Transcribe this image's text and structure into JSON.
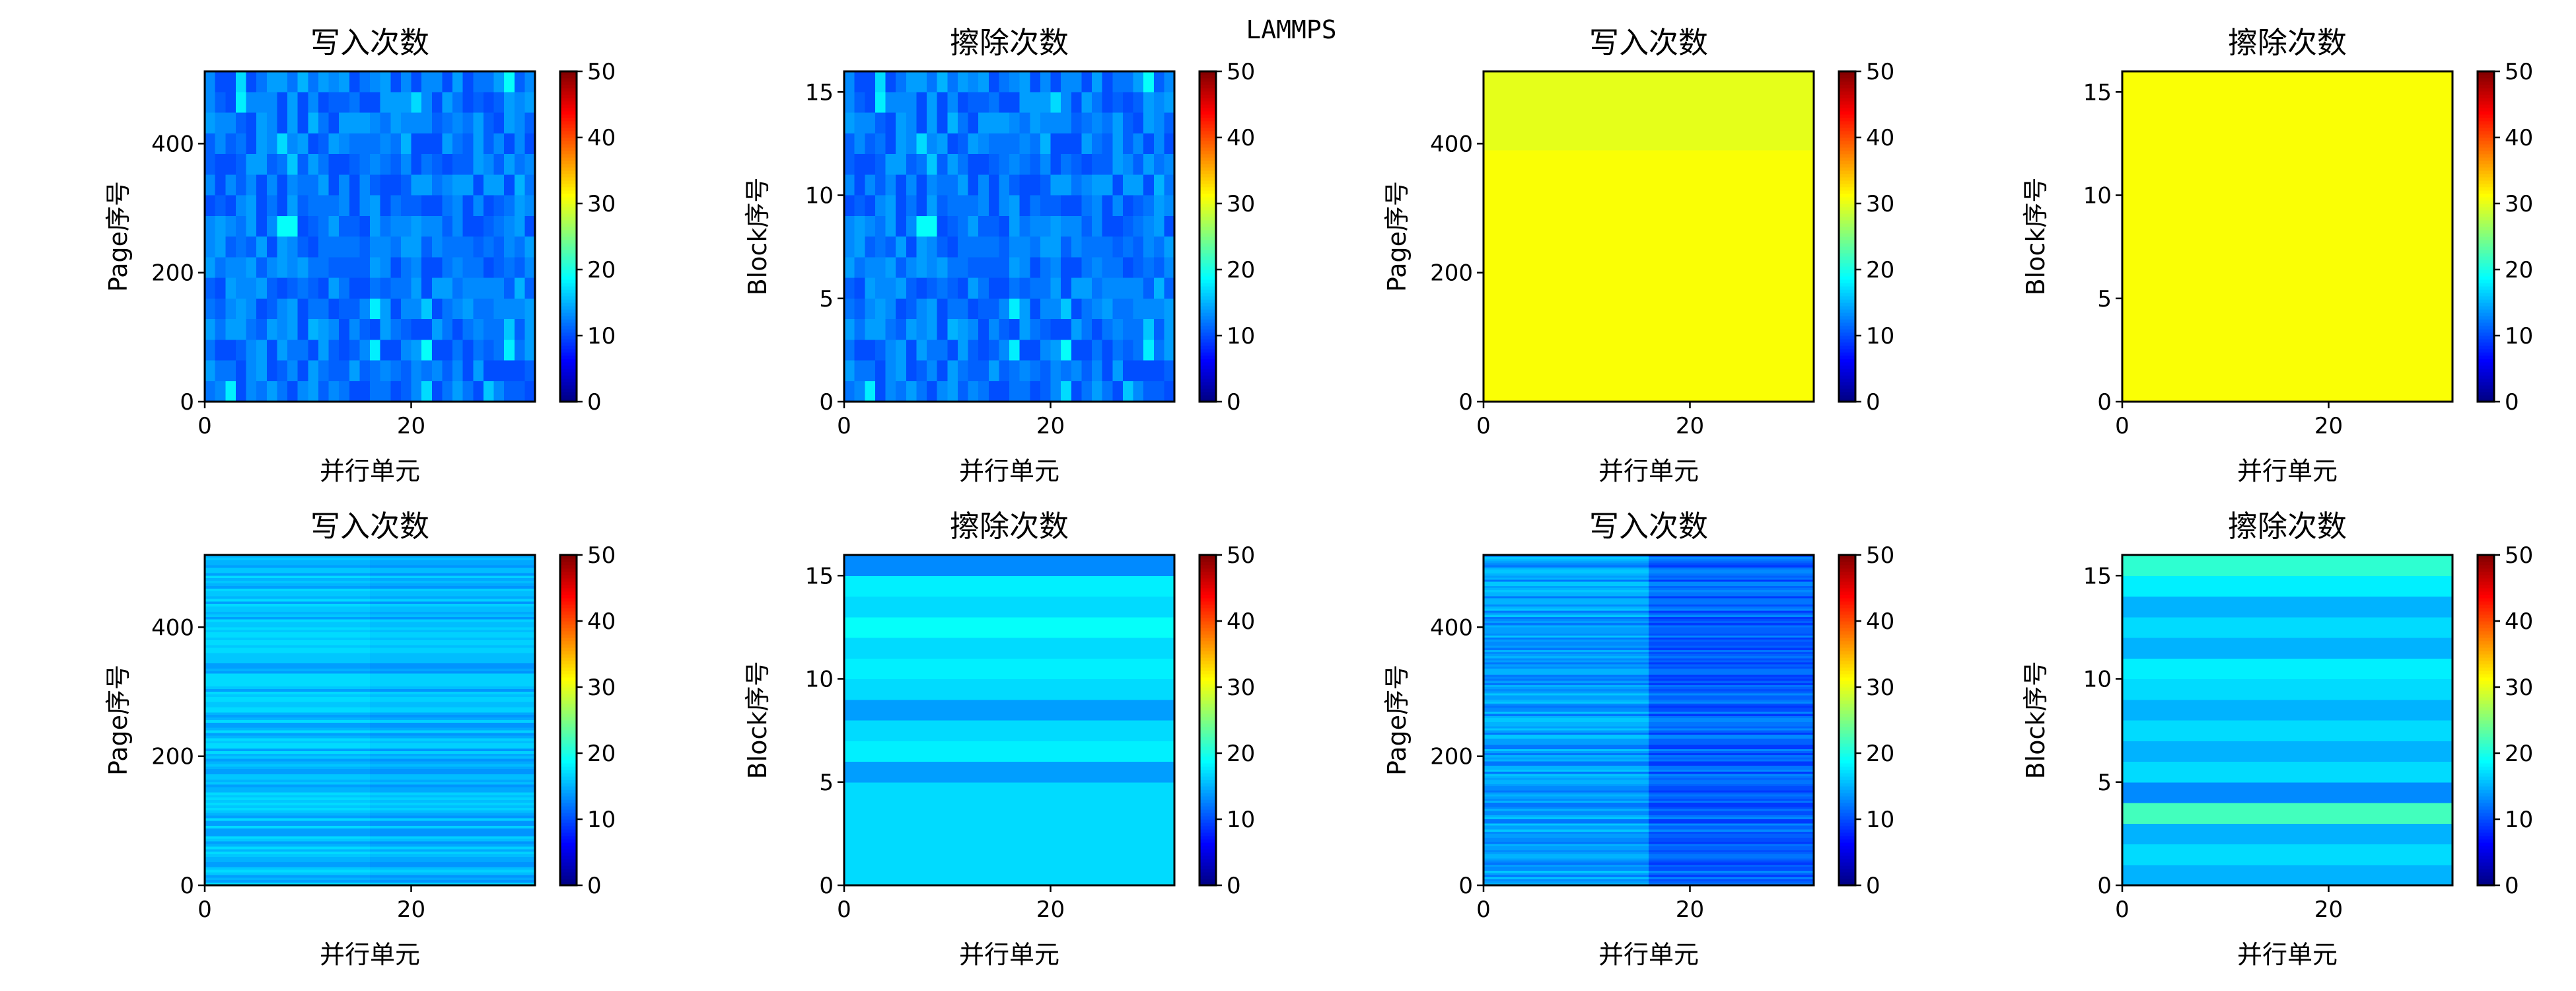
{
  "figure_title": "LAMMPS",
  "colormap": "jet",
  "chart_data": [
    {
      "type": "heatmap",
      "title": "写入次数",
      "xlabel": "并行单元",
      "ylabel": "Page序号",
      "xlim": [
        0,
        32
      ],
      "ylim": [
        0,
        512
      ],
      "xticks": [
        0,
        20
      ],
      "yticks": [
        0,
        200,
        400
      ],
      "color_range": [
        0,
        50
      ],
      "colorbar_ticks": [
        0,
        10,
        20,
        30,
        40,
        50
      ],
      "pattern": "random",
      "levels": [
        10,
        11,
        12,
        13,
        14
      ],
      "blocks": [
        32,
        16
      ]
    },
    {
      "type": "heatmap",
      "title": "擦除次数",
      "xlabel": "并行单元",
      "ylabel": "Block序号",
      "xlim": [
        0,
        32
      ],
      "ylim": [
        0,
        16
      ],
      "xticks": [
        0,
        20
      ],
      "yticks": [
        0,
        5,
        10,
        15
      ],
      "color_range": [
        0,
        50
      ],
      "colorbar_ticks": [
        0,
        10,
        20,
        30,
        40,
        50
      ],
      "pattern": "random",
      "levels": [
        10,
        11,
        12,
        13,
        14
      ],
      "blocks": [
        32,
        16
      ]
    },
    {
      "type": "heatmap",
      "title": "写入次数",
      "xlabel": "并行单元",
      "ylabel": "Page序号",
      "xlim": [
        0,
        32
      ],
      "ylim": [
        0,
        512
      ],
      "xticks": [
        0,
        20
      ],
      "yticks": [
        0,
        200,
        400
      ],
      "color_range": [
        0,
        50
      ],
      "colorbar_ticks": [
        0,
        10,
        20,
        30,
        40,
        50
      ],
      "pattern": "rows",
      "row_values": [
        31,
        30
      ],
      "row_ranges": [
        [
          0,
          390
        ],
        [
          390,
          512
        ]
      ]
    },
    {
      "type": "heatmap",
      "title": "擦除次数",
      "xlabel": "并行单元",
      "ylabel": "Block序号",
      "xlim": [
        0,
        32
      ],
      "ylim": [
        0,
        16
      ],
      "xticks": [
        0,
        20
      ],
      "yticks": [
        0,
        5,
        10,
        15
      ],
      "color_range": [
        0,
        50
      ],
      "colorbar_ticks": [
        0,
        10,
        20,
        30,
        40,
        50
      ],
      "pattern": "uniform",
      "value": 31
    },
    {
      "type": "heatmap",
      "title": "写入次数",
      "xlabel": "并行单元",
      "ylabel": "Page序号",
      "xlim": [
        0,
        32
      ],
      "ylim": [
        0,
        512
      ],
      "xticks": [
        0,
        20
      ],
      "yticks": [
        0,
        200,
        400
      ],
      "color_range": [
        0,
        50
      ],
      "colorbar_ticks": [
        0,
        10,
        20,
        30,
        40,
        50
      ],
      "pattern": "stripes",
      "stripe_count": 128,
      "levels": [
        14,
        15,
        16,
        17
      ],
      "split_column": 16,
      "right_offset": -0.5
    },
    {
      "type": "heatmap",
      "title": "擦除次数",
      "xlabel": "并行单元",
      "ylabel": "Block序号",
      "xlim": [
        0,
        32
      ],
      "ylim": [
        0,
        16
      ],
      "xticks": [
        0,
        20
      ],
      "yticks": [
        0,
        5,
        10,
        15
      ],
      "color_range": [
        0,
        50
      ],
      "colorbar_ticks": [
        0,
        10,
        20,
        30,
        40,
        50
      ],
      "pattern": "rows",
      "row_values": [
        17,
        17,
        17,
        17,
        17,
        14,
        18,
        17,
        14,
        17,
        18,
        17,
        19,
        17,
        18,
        13
      ]
    },
    {
      "type": "heatmap",
      "title": "写入次数",
      "xlabel": "并行单元",
      "ylabel": "Page序号",
      "xlim": [
        0,
        32
      ],
      "ylim": [
        0,
        512
      ],
      "xticks": [
        0,
        20
      ],
      "yticks": [
        0,
        200,
        400
      ],
      "color_range": [
        0,
        50
      ],
      "colorbar_ticks": [
        0,
        10,
        20,
        30,
        40,
        50
      ],
      "pattern": "stripes",
      "stripe_count": 160,
      "levels": [
        12,
        13,
        14,
        15,
        16
      ],
      "split_column": 16,
      "right_offset": -3
    },
    {
      "type": "heatmap",
      "title": "擦除次数",
      "xlabel": "并行单元",
      "ylabel": "Block序号",
      "xlim": [
        0,
        32
      ],
      "ylim": [
        0,
        16
      ],
      "xticks": [
        0,
        20
      ],
      "yticks": [
        0,
        5,
        10,
        15
      ],
      "color_range": [
        0,
        50
      ],
      "colorbar_ticks": [
        0,
        10,
        20,
        30,
        40,
        50
      ],
      "pattern": "rows",
      "row_values": [
        15,
        17,
        15,
        22,
        13,
        17,
        15,
        17,
        15,
        17,
        18,
        15,
        17,
        15,
        18,
        21
      ]
    }
  ]
}
